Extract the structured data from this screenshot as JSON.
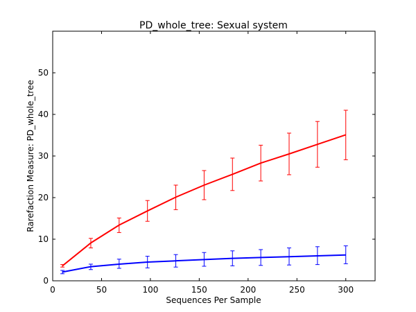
{
  "chart_data": {
    "type": "line",
    "title": "PD_whole_tree: Sexual system",
    "xlabel": "Sequences Per Sample",
    "ylabel": "Rarefaction Measure: PD_whole_tree",
    "xlim": [
      0,
      330
    ],
    "ylim": [
      0,
      60
    ],
    "xticks": [
      0,
      50,
      100,
      150,
      200,
      250,
      300
    ],
    "yticks": [
      0,
      10,
      20,
      30,
      40,
      50
    ],
    "grid": false,
    "legend": "none",
    "x": [
      10,
      39,
      68,
      97,
      126,
      155,
      184,
      213,
      242,
      271,
      300
    ],
    "series": [
      {
        "color": "#ff0000",
        "values": [
          3.6,
          9.1,
          13.4,
          16.8,
          20.1,
          23.0,
          25.6,
          28.3,
          30.5,
          32.8,
          35.1
        ],
        "err_low": [
          3.3,
          7.9,
          11.6,
          14.3,
          17.1,
          19.5,
          21.7,
          24.0,
          25.5,
          27.3,
          29.1
        ],
        "err_high": [
          3.9,
          10.2,
          15.1,
          19.3,
          23.0,
          26.5,
          29.5,
          32.6,
          35.5,
          38.3,
          41.0
        ]
      },
      {
        "color": "#0000ff",
        "values": [
          2.1,
          3.4,
          4.0,
          4.5,
          4.8,
          5.1,
          5.4,
          5.6,
          5.8,
          6.0,
          6.2
        ],
        "err_low": [
          1.7,
          2.7,
          3.0,
          3.1,
          3.3,
          3.5,
          3.6,
          3.7,
          3.8,
          3.9,
          4.1
        ],
        "err_high": [
          2.5,
          4.0,
          5.2,
          5.9,
          6.3,
          6.8,
          7.2,
          7.5,
          7.9,
          8.2,
          8.4
        ]
      }
    ]
  }
}
